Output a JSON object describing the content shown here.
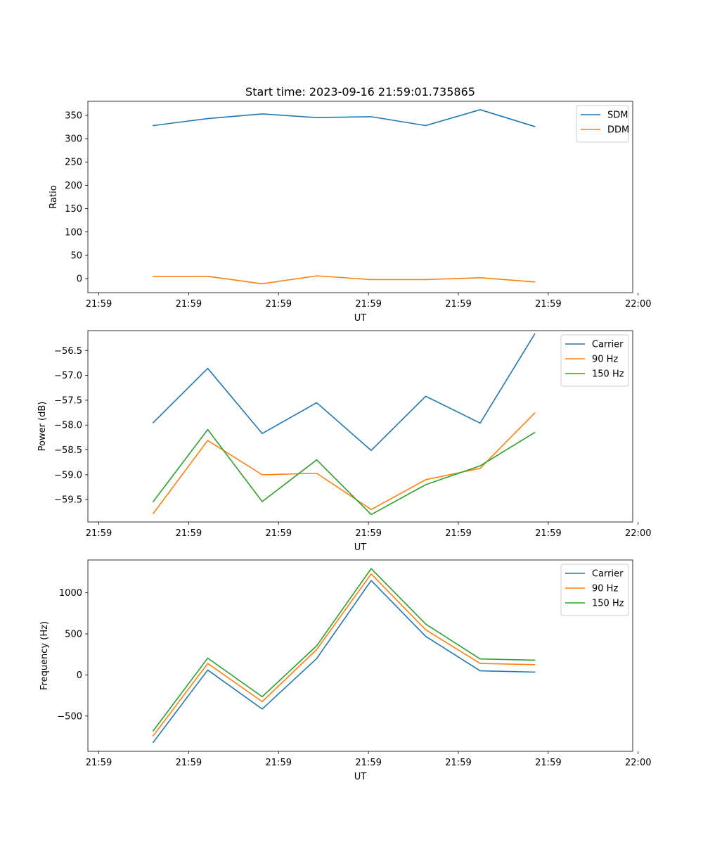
{
  "chart_data": [
    {
      "type": "line",
      "title": "Start time: 2023-09-16 21:59:01.735865",
      "xlabel": "UT",
      "ylabel": "Ratio",
      "xlim": [
        -0.2,
        9.8
      ],
      "ylim": [
        -30,
        380
      ],
      "x": [
        1,
        2,
        3,
        4,
        5,
        6,
        7,
        8
      ],
      "x_ticks": [
        0,
        1.65,
        3.3,
        4.95,
        6.6,
        8.25,
        9.9
      ],
      "x_tick_labels": [
        "21:59",
        "21:59",
        "21:59",
        "21:59",
        "21:59",
        "21:59",
        "22:00"
      ],
      "y_ticks": [
        0,
        50,
        100,
        150,
        200,
        250,
        300,
        350
      ],
      "y_tick_labels": [
        "0",
        "50",
        "100",
        "150",
        "200",
        "250",
        "300",
        "350"
      ],
      "legend_position": "top-right",
      "series": [
        {
          "name": "SDM",
          "color": "#1f77b4",
          "values": [
            328,
            343,
            353,
            345,
            347,
            328,
            362,
            326
          ]
        },
        {
          "name": "DDM",
          "color": "#ff7f0e",
          "values": [
            5,
            5,
            -11,
            6,
            -2,
            -2,
            2,
            -7
          ]
        }
      ]
    },
    {
      "type": "line",
      "title": "",
      "xlabel": "UT",
      "ylabel": "Power (dB)",
      "xlim": [
        -0.2,
        9.8
      ],
      "ylim": [
        -59.95,
        -56.1
      ],
      "x": [
        1,
        2,
        3,
        4,
        5,
        6,
        7,
        8
      ],
      "x_ticks": [
        0,
        1.65,
        3.3,
        4.95,
        6.6,
        8.25,
        9.9
      ],
      "x_tick_labels": [
        "21:59",
        "21:59",
        "21:59",
        "21:59",
        "21:59",
        "21:59",
        "22:00"
      ],
      "y_ticks": [
        -59.5,
        -59.0,
        -58.5,
        -58.0,
        -57.5,
        -57.0,
        -56.5
      ],
      "y_tick_labels": [
        "−59.5",
        "−59.0",
        "−58.5",
        "−58.0",
        "−57.5",
        "−57.0",
        "−56.5"
      ],
      "legend_position": "top-right",
      "series": [
        {
          "name": "Carrier",
          "color": "#1f77b4",
          "values": [
            -57.95,
            -56.86,
            -58.17,
            -57.55,
            -58.51,
            -57.42,
            -57.96,
            -56.17
          ]
        },
        {
          "name": "90 Hz",
          "color": "#ff7f0e",
          "values": [
            -59.78,
            -58.31,
            -59.0,
            -58.97,
            -59.7,
            -59.1,
            -58.87,
            -57.76
          ]
        },
        {
          "name": "150 Hz",
          "color": "#2ca02c",
          "values": [
            -59.54,
            -58.09,
            -59.54,
            -58.7,
            -59.8,
            -59.2,
            -58.82,
            -58.15
          ]
        }
      ]
    },
    {
      "type": "line",
      "title": "",
      "xlabel": "UT",
      "ylabel": "Frequency (Hz)",
      "xlim": [
        -0.2,
        9.8
      ],
      "ylim": [
        -930,
        1400
      ],
      "x": [
        1,
        2,
        3,
        4,
        5,
        6,
        7,
        8
      ],
      "x_ticks": [
        0,
        1.65,
        3.3,
        4.95,
        6.6,
        8.25,
        9.9
      ],
      "x_tick_labels": [
        "21:59",
        "21:59",
        "21:59",
        "21:59",
        "21:59",
        "21:59",
        "22:00"
      ],
      "y_ticks": [
        -500,
        0,
        500,
        1000
      ],
      "y_tick_labels": [
        "−500",
        "0",
        "500",
        "1000"
      ],
      "legend_position": "top-right",
      "series": [
        {
          "name": "Carrier",
          "color": "#1f77b4",
          "values": [
            -820,
            60,
            -415,
            200,
            1150,
            470,
            50,
            35
          ]
        },
        {
          "name": "90 Hz",
          "color": "#ff7f0e",
          "values": [
            -740,
            140,
            -325,
            310,
            1230,
            550,
            140,
            125
          ]
        },
        {
          "name": "150 Hz",
          "color": "#2ca02c",
          "values": [
            -680,
            205,
            -265,
            355,
            1295,
            620,
            195,
            180
          ]
        }
      ]
    }
  ]
}
